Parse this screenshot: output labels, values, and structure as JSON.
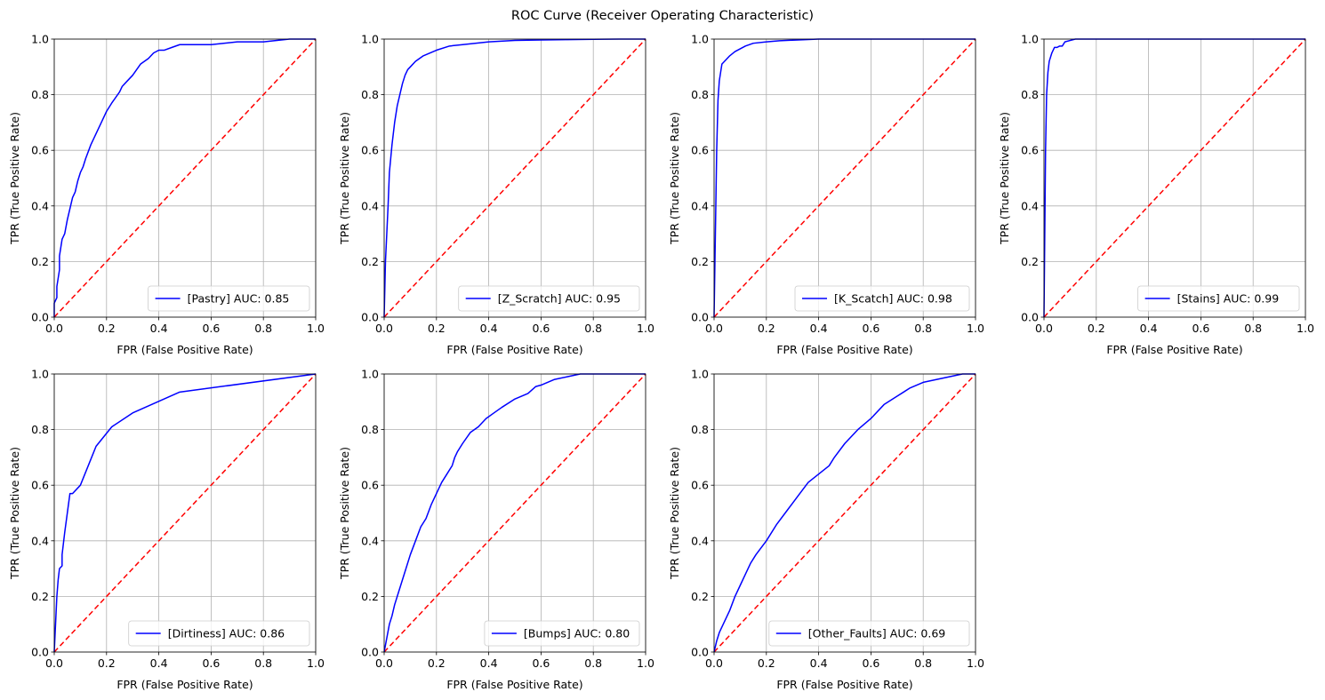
{
  "title": "ROC Curve (Receiver Operating Characteristic)",
  "colors": {
    "curve": "#0000ff",
    "diagonal": "#ff0000",
    "grid": "#b0b0b0",
    "axes": "#000000"
  },
  "chart_data": [
    {
      "type": "line",
      "xlabel": "FPR (False Positive Rate)",
      "ylabel": "TPR (True Positive Rate)",
      "xlim": [
        0,
        1
      ],
      "ylim": [
        0,
        1
      ],
      "xticks": [
        "0.0",
        "0.2",
        "0.4",
        "0.6",
        "0.8",
        "1.0"
      ],
      "yticks": [
        "0.0",
        "0.2",
        "0.4",
        "0.6",
        "0.8",
        "1.0"
      ],
      "grid": true,
      "legend_position": "lower-right",
      "series": [
        {
          "name": "[Pastry] AUC: 0.85",
          "x": [
            0,
            0,
            0.01,
            0.01,
            0.02,
            0.02,
            0.03,
            0.04,
            0.05,
            0.06,
            0.07,
            0.08,
            0.09,
            0.1,
            0.11,
            0.12,
            0.14,
            0.15,
            0.16,
            0.18,
            0.2,
            0.22,
            0.25,
            0.26,
            0.28,
            0.3,
            0.33,
            0.36,
            0.38,
            0.4,
            0.42,
            0.45,
            0.48,
            0.5,
            0.52,
            0.6,
            0.7,
            0.8,
            0.9,
            1.0
          ],
          "y": [
            0,
            0.05,
            0.07,
            0.11,
            0.17,
            0.22,
            0.28,
            0.3,
            0.35,
            0.39,
            0.43,
            0.45,
            0.49,
            0.52,
            0.54,
            0.57,
            0.62,
            0.64,
            0.66,
            0.7,
            0.74,
            0.77,
            0.81,
            0.83,
            0.85,
            0.87,
            0.91,
            0.93,
            0.95,
            0.96,
            0.96,
            0.97,
            0.98,
            0.98,
            0.98,
            0.98,
            0.99,
            0.99,
            1.0,
            1.0
          ]
        }
      ]
    },
    {
      "type": "line",
      "xlabel": "FPR (False Positive Rate)",
      "ylabel": "TPR (True Positive Rate)",
      "xlim": [
        0,
        1
      ],
      "ylim": [
        0,
        1
      ],
      "xticks": [
        "0.0",
        "0.2",
        "0.4",
        "0.6",
        "0.8",
        "1.0"
      ],
      "yticks": [
        "0.0",
        "0.2",
        "0.4",
        "0.6",
        "0.8",
        "1.0"
      ],
      "grid": true,
      "legend_position": "lower-right",
      "series": [
        {
          "name": "[Z_Scratch] AUC: 0.95",
          "x": [
            0,
            0.005,
            0.01,
            0.015,
            0.02,
            0.025,
            0.03,
            0.04,
            0.05,
            0.06,
            0.07,
            0.08,
            0.09,
            0.1,
            0.12,
            0.15,
            0.2,
            0.25,
            0.3,
            0.4,
            0.5,
            0.6,
            0.7,
            0.8,
            0.9,
            1.0
          ],
          "y": [
            0,
            0.2,
            0.3,
            0.4,
            0.52,
            0.57,
            0.62,
            0.7,
            0.76,
            0.8,
            0.84,
            0.87,
            0.89,
            0.9,
            0.92,
            0.94,
            0.96,
            0.975,
            0.98,
            0.99,
            0.995,
            0.997,
            0.998,
            0.999,
            1.0,
            1.0
          ]
        }
      ]
    },
    {
      "type": "line",
      "xlabel": "FPR (False Positive Rate)",
      "ylabel": "TPR (True Positive Rate)",
      "xlim": [
        0,
        1
      ],
      "ylim": [
        0,
        1
      ],
      "xticks": [
        "0.0",
        "0.2",
        "0.4",
        "0.6",
        "0.8",
        "1.0"
      ],
      "yticks": [
        "0.0",
        "0.2",
        "0.4",
        "0.6",
        "0.8",
        "1.0"
      ],
      "grid": true,
      "legend_position": "lower-right",
      "series": [
        {
          "name": "[K_Scatch] AUC: 0.98",
          "x": [
            0,
            0.005,
            0.01,
            0.015,
            0.02,
            0.025,
            0.03,
            0.04,
            0.05,
            0.06,
            0.08,
            0.1,
            0.12,
            0.15,
            0.2,
            0.25,
            0.3,
            0.35,
            0.4,
            0.6,
            0.8,
            1.0
          ],
          "y": [
            0,
            0.3,
            0.6,
            0.78,
            0.85,
            0.88,
            0.91,
            0.92,
            0.93,
            0.94,
            0.955,
            0.965,
            0.975,
            0.985,
            0.99,
            0.994,
            0.996,
            0.998,
            1.0,
            1.0,
            1.0,
            1.0
          ]
        }
      ]
    },
    {
      "type": "line",
      "xlabel": "FPR (False Positive Rate)",
      "ylabel": "TPR (True Positive Rate)",
      "xlim": [
        0,
        1
      ],
      "ylim": [
        0,
        1
      ],
      "xticks": [
        "0.0",
        "0.2",
        "0.4",
        "0.6",
        "0.8",
        "1.0"
      ],
      "yticks": [
        "0.0",
        "0.2",
        "0.4",
        "0.6",
        "0.8",
        "1.0"
      ],
      "grid": true,
      "legend_position": "lower-right",
      "series": [
        {
          "name": "[Stains] AUC: 0.99",
          "x": [
            0,
            0.003,
            0.006,
            0.01,
            0.015,
            0.02,
            0.03,
            0.04,
            0.05,
            0.06,
            0.07,
            0.08,
            0.1,
            0.12,
            0.14,
            0.2,
            0.4,
            0.6,
            0.8,
            1.0
          ],
          "y": [
            0,
            0.3,
            0.6,
            0.8,
            0.88,
            0.92,
            0.95,
            0.97,
            0.97,
            0.975,
            0.975,
            0.99,
            0.995,
            1.0,
            1.0,
            1.0,
            1.0,
            1.0,
            1.0,
            1.0
          ]
        }
      ]
    },
    {
      "type": "line",
      "xlabel": "FPR (False Positive Rate)",
      "ylabel": "TPR (True Positive Rate)",
      "xlim": [
        0,
        1
      ],
      "ylim": [
        0,
        1
      ],
      "xticks": [
        "0.0",
        "0.2",
        "0.4",
        "0.6",
        "0.8",
        "1.0"
      ],
      "yticks": [
        "0.0",
        "0.2",
        "0.4",
        "0.6",
        "0.8",
        "1.0"
      ],
      "grid": true,
      "legend_position": "lower-right",
      "series": [
        {
          "name": "[Dirtiness] AUC: 0.86",
          "x": [
            0,
            0.005,
            0.01,
            0.015,
            0.02,
            0.03,
            0.03,
            0.04,
            0.04,
            0.05,
            0.06,
            0.07,
            0.1,
            0.16,
            0.22,
            0.3,
            0.48,
            1.0
          ],
          "y": [
            0,
            0.1,
            0.2,
            0.26,
            0.3,
            0.31,
            0.35,
            0.43,
            0.43,
            0.5,
            0.57,
            0.57,
            0.6,
            0.74,
            0.81,
            0.86,
            0.935,
            1.0
          ]
        }
      ]
    },
    {
      "type": "line",
      "xlabel": "FPR (False Positive Rate)",
      "ylabel": "TPR (True Positive Rate)",
      "xlim": [
        0,
        1
      ],
      "ylim": [
        0,
        1
      ],
      "xticks": [
        "0.0",
        "0.2",
        "0.4",
        "0.6",
        "0.8",
        "1.0"
      ],
      "yticks": [
        "0.0",
        "0.2",
        "0.4",
        "0.6",
        "0.8",
        "1.0"
      ],
      "grid": true,
      "legend_position": "lower-right",
      "series": [
        {
          "name": "[Bumps] AUC: 0.80",
          "x": [
            0,
            0.01,
            0.02,
            0.03,
            0.04,
            0.05,
            0.06,
            0.08,
            0.1,
            0.12,
            0.14,
            0.16,
            0.18,
            0.2,
            0.22,
            0.24,
            0.26,
            0.27,
            0.28,
            0.3,
            0.33,
            0.36,
            0.39,
            0.42,
            0.45,
            0.5,
            0.55,
            0.58,
            0.6,
            0.65,
            0.7,
            0.75,
            1.0
          ],
          "y": [
            0,
            0.05,
            0.1,
            0.13,
            0.17,
            0.2,
            0.23,
            0.29,
            0.35,
            0.4,
            0.45,
            0.48,
            0.53,
            0.57,
            0.61,
            0.64,
            0.67,
            0.7,
            0.72,
            0.75,
            0.79,
            0.81,
            0.84,
            0.86,
            0.88,
            0.91,
            0.93,
            0.955,
            0.96,
            0.98,
            0.99,
            1.0,
            1.0
          ]
        }
      ]
    },
    {
      "type": "line",
      "xlabel": "FPR (False Positive Rate)",
      "ylabel": "TPR (True Positive Rate)",
      "xlim": [
        0,
        1
      ],
      "ylim": [
        0,
        1
      ],
      "xticks": [
        "0.0",
        "0.2",
        "0.4",
        "0.6",
        "0.8",
        "1.0"
      ],
      "yticks": [
        "0.0",
        "0.2",
        "0.4",
        "0.6",
        "0.8",
        "1.0"
      ],
      "grid": true,
      "legend_position": "lower-right",
      "series": [
        {
          "name": "[Other_Faults] AUC: 0.69",
          "x": [
            0,
            0.01,
            0.02,
            0.04,
            0.06,
            0.08,
            0.1,
            0.12,
            0.14,
            0.16,
            0.2,
            0.24,
            0.28,
            0.32,
            0.36,
            0.4,
            0.44,
            0.46,
            0.5,
            0.55,
            0.6,
            0.65,
            0.7,
            0.75,
            0.8,
            0.85,
            0.9,
            0.95,
            1.0
          ],
          "y": [
            0,
            0.04,
            0.07,
            0.11,
            0.15,
            0.2,
            0.24,
            0.28,
            0.32,
            0.35,
            0.4,
            0.46,
            0.51,
            0.56,
            0.61,
            0.64,
            0.67,
            0.7,
            0.75,
            0.8,
            0.84,
            0.89,
            0.92,
            0.95,
            0.97,
            0.98,
            0.99,
            1.0,
            1.0
          ]
        }
      ]
    }
  ]
}
